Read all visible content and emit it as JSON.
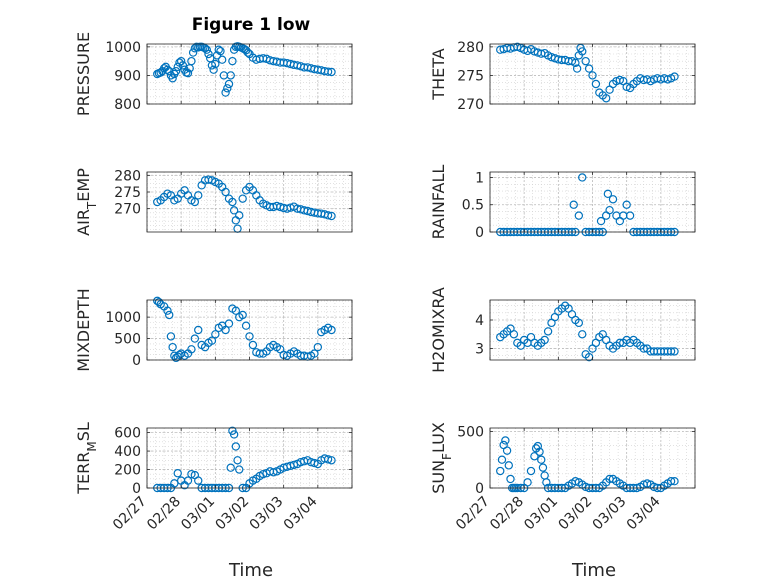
{
  "figure": {
    "title": "Figure 1 low",
    "marker_color": "#0072BD",
    "x_label": "Time",
    "x_ticks": [
      "02/27",
      "02/28",
      "03/01",
      "03/02",
      "03/03",
      "03/04"
    ]
  },
  "chart_data": [
    {
      "type": "scatter",
      "ylabel": "PRESSURE",
      "title": "Figure 1 low",
      "ylim": [
        800,
        1010
      ],
      "yticks": [
        800,
        900,
        1000
      ],
      "grid": true,
      "x": [
        0.3,
        0.35,
        0.4,
        0.45,
        0.5,
        0.55,
        0.6,
        0.65,
        0.7,
        0.75,
        0.8,
        0.85,
        0.9,
        0.95,
        1.0,
        1.05,
        1.1,
        1.15,
        1.2,
        1.25,
        1.3,
        1.35,
        1.4,
        1.45,
        1.5,
        1.55,
        1.6,
        1.65,
        1.7,
        1.75,
        1.8,
        1.85,
        1.9,
        1.95,
        2.0,
        2.05,
        2.1,
        2.15,
        2.2,
        2.25,
        2.3,
        2.35,
        2.4,
        2.45,
        2.5,
        2.55,
        2.6,
        2.65,
        2.7,
        2.75,
        2.8,
        2.85,
        2.9,
        2.95,
        3.0,
        3.1,
        3.2,
        3.3,
        3.4,
        3.5,
        3.6,
        3.7,
        3.8,
        3.9,
        4.0,
        4.1,
        4.2,
        4.3,
        4.4,
        4.5,
        4.6,
        4.7,
        4.8,
        4.9,
        5.0,
        5.1,
        5.2,
        5.3,
        5.4
      ],
      "y": [
        905,
        908,
        910,
        915,
        925,
        930,
        920,
        915,
        900,
        890,
        905,
        915,
        930,
        945,
        950,
        935,
        920,
        910,
        908,
        925,
        950,
        980,
        995,
        1000,
        998,
        1000,
        1000,
        998,
        995,
        990,
        975,
        960,
        935,
        920,
        940,
        970,
        990,
        985,
        955,
        900,
        840,
        855,
        870,
        900,
        950,
        990,
        1000,
        1002,
        1000,
        998,
        995,
        992,
        988,
        980,
        975,
        962,
        955,
        958,
        960,
        958,
        953,
        950,
        948,
        945,
        945,
        943,
        940,
        937,
        935,
        932,
        928,
        928,
        925,
        922,
        920,
        918,
        915,
        913,
        912
      ]
    },
    {
      "type": "scatter",
      "ylabel": "THETA",
      "ylim": [
        270,
        280.5
      ],
      "yticks": [
        270,
        275,
        280
      ],
      "grid": true,
      "x": [
        0.3,
        0.4,
        0.5,
        0.6,
        0.7,
        0.8,
        0.9,
        1.0,
        1.1,
        1.2,
        1.3,
        1.4,
        1.5,
        1.6,
        1.7,
        1.8,
        1.9,
        2.0,
        2.1,
        2.2,
        2.3,
        2.4,
        2.5,
        2.55,
        2.6,
        2.65,
        2.7,
        2.8,
        2.9,
        3.0,
        3.1,
        3.2,
        3.3,
        3.4,
        3.5,
        3.6,
        3.7,
        3.8,
        3.9,
        4.0,
        4.1,
        4.2,
        4.3,
        4.4,
        4.5,
        4.6,
        4.7,
        4.8,
        4.9,
        5.0,
        5.1,
        5.2,
        5.3,
        5.4
      ],
      "y": [
        279.5,
        279.6,
        279.8,
        279.7,
        279.9,
        280.0,
        279.8,
        279.5,
        279.3,
        279.6,
        279.2,
        279.0,
        278.8,
        278.9,
        278.5,
        278.2,
        278.0,
        277.8,
        277.7,
        277.7,
        277.5,
        277.5,
        277.2,
        276.2,
        278.5,
        279.8,
        279.2,
        277.5,
        276.2,
        275.0,
        273.5,
        272.0,
        271.5,
        271.0,
        272.5,
        273.5,
        274.0,
        274.2,
        274.0,
        273.0,
        272.8,
        273.5,
        274.0,
        274.5,
        274.2,
        274.3,
        274.0,
        274.3,
        274.5,
        274.3,
        274.5,
        274.3,
        274.5,
        274.8
      ]
    },
    {
      "type": "scatter",
      "ylabel": "AIR_TEMP",
      "ylim": [
        263,
        281
      ],
      "yticks": [
        270,
        275,
        280
      ],
      "grid": true,
      "x": [
        0.3,
        0.4,
        0.5,
        0.6,
        0.7,
        0.8,
        0.9,
        1.0,
        1.1,
        1.2,
        1.3,
        1.4,
        1.5,
        1.6,
        1.7,
        1.8,
        1.9,
        2.0,
        2.1,
        2.2,
        2.3,
        2.4,
        2.5,
        2.55,
        2.6,
        2.65,
        2.7,
        2.8,
        2.9,
        3.0,
        3.1,
        3.2,
        3.3,
        3.4,
        3.5,
        3.6,
        3.7,
        3.8,
        3.9,
        4.0,
        4.1,
        4.2,
        4.3,
        4.4,
        4.5,
        4.6,
        4.7,
        4.8,
        4.9,
        5.0,
        5.1,
        5.2,
        5.3,
        5.4
      ],
      "y": [
        272.0,
        272.5,
        273.5,
        274.5,
        274.0,
        272.5,
        273.0,
        274.5,
        275.5,
        274.0,
        272.5,
        272.0,
        274.0,
        277.0,
        278.5,
        278.7,
        278.5,
        278.0,
        277.5,
        276.5,
        275.0,
        273.0,
        272.0,
        269.5,
        266.5,
        264.0,
        268.0,
        273.0,
        275.5,
        276.5,
        275.5,
        274.0,
        272.5,
        271.5,
        271.0,
        270.5,
        270.5,
        270.8,
        270.5,
        270.2,
        270.0,
        270.3,
        270.6,
        270.0,
        269.8,
        269.5,
        269.3,
        269.0,
        268.8,
        268.6,
        268.5,
        268.3,
        268.0,
        267.8
      ]
    },
    {
      "type": "scatter",
      "ylabel": "RAINFALL",
      "ylim": [
        0,
        1.1
      ],
      "yticks": [
        0,
        0.5,
        1
      ],
      "grid": true,
      "x": [
        0.3,
        0.4,
        0.5,
        0.6,
        0.7,
        0.8,
        0.9,
        1.0,
        1.1,
        1.2,
        1.3,
        1.4,
        1.5,
        1.6,
        1.7,
        1.8,
        1.9,
        2.0,
        2.1,
        2.2,
        2.3,
        2.4,
        2.45,
        2.5,
        2.6,
        2.7,
        2.8,
        2.9,
        3.0,
        3.1,
        3.2,
        3.25,
        3.3,
        3.4,
        3.45,
        3.5,
        3.6,
        3.7,
        3.8,
        3.9,
        4.0,
        4.1,
        4.2,
        4.3,
        4.4,
        4.5,
        4.6,
        4.7,
        4.8,
        4.9,
        5.0,
        5.1,
        5.2,
        5.3,
        5.4
      ],
      "y": [
        0,
        0,
        0,
        0,
        0,
        0,
        0,
        0,
        0,
        0,
        0,
        0,
        0,
        0,
        0,
        0,
        0,
        0,
        0,
        0,
        0,
        0,
        0.5,
        0,
        0.3,
        1.0,
        0,
        0,
        0,
        0,
        0,
        0.2,
        0,
        0.3,
        0.7,
        0.4,
        0.6,
        0.3,
        0.2,
        0.3,
        0.5,
        0.3,
        0,
        0,
        0,
        0,
        0,
        0,
        0,
        0,
        0,
        0,
        0,
        0,
        0
      ]
    },
    {
      "type": "scatter",
      "ylabel": "MIXDEPTH",
      "ylim": [
        0,
        1400
      ],
      "yticks": [
        0,
        500,
        1000
      ],
      "grid": true,
      "x": [
        0.3,
        0.35,
        0.4,
        0.5,
        0.6,
        0.65,
        0.7,
        0.75,
        0.8,
        0.85,
        0.9,
        0.95,
        1.0,
        1.1,
        1.2,
        1.3,
        1.4,
        1.5,
        1.6,
        1.7,
        1.8,
        1.9,
        2.0,
        2.1,
        2.2,
        2.3,
        2.4,
        2.5,
        2.6,
        2.7,
        2.8,
        2.9,
        3.0,
        3.1,
        3.2,
        3.3,
        3.4,
        3.5,
        3.6,
        3.7,
        3.8,
        3.9,
        4.0,
        4.1,
        4.2,
        4.3,
        4.4,
        4.5,
        4.6,
        4.7,
        4.8,
        4.9,
        5.0,
        5.1,
        5.2,
        5.3,
        5.4
      ],
      "y": [
        1380,
        1350,
        1300,
        1250,
        1150,
        1050,
        550,
        300,
        100,
        50,
        80,
        120,
        150,
        100,
        150,
        250,
        500,
        700,
        350,
        300,
        400,
        450,
        600,
        750,
        800,
        700,
        850,
        1200,
        1150,
        1000,
        1050,
        800,
        550,
        350,
        180,
        150,
        150,
        200,
        300,
        350,
        300,
        250,
        120,
        100,
        150,
        200,
        150,
        100,
        100,
        80,
        100,
        150,
        300,
        650,
        700,
        750,
        700
      ]
    },
    {
      "type": "scatter",
      "ylabel": "H2OMIXRA",
      "ylim": [
        2.6,
        4.7
      ],
      "yticks": [
        3,
        4
      ],
      "grid": true,
      "x": [
        0.3,
        0.4,
        0.5,
        0.6,
        0.7,
        0.8,
        0.9,
        1.0,
        1.1,
        1.2,
        1.3,
        1.4,
        1.5,
        1.6,
        1.7,
        1.8,
        1.9,
        2.0,
        2.1,
        2.2,
        2.3,
        2.4,
        2.5,
        2.6,
        2.7,
        2.8,
        2.9,
        3.0,
        3.1,
        3.2,
        3.3,
        3.4,
        3.5,
        3.6,
        3.7,
        3.8,
        3.9,
        4.0,
        4.1,
        4.2,
        4.3,
        4.4,
        4.5,
        4.6,
        4.7,
        4.8,
        4.9,
        5.0,
        5.1,
        5.2,
        5.3,
        5.4
      ],
      "y": [
        3.4,
        3.5,
        3.6,
        3.7,
        3.5,
        3.2,
        3.1,
        3.3,
        3.2,
        3.4,
        3.2,
        3.1,
        3.2,
        3.3,
        3.6,
        3.9,
        4.1,
        4.3,
        4.4,
        4.5,
        4.4,
        4.2,
        4.0,
        3.9,
        3.5,
        2.8,
        2.7,
        3.0,
        3.2,
        3.4,
        3.5,
        3.3,
        3.1,
        3.0,
        3.1,
        3.2,
        3.2,
        3.3,
        3.2,
        3.3,
        3.2,
        3.1,
        3.0,
        3.0,
        2.9,
        2.9,
        2.9,
        2.9,
        2.9,
        2.9,
        2.9,
        2.9
      ]
    },
    {
      "type": "scatter",
      "ylabel": "TERR_MSL",
      "ylim": [
        0,
        650
      ],
      "yticks": [
        0,
        200,
        400,
        600
      ],
      "grid": true,
      "x": [
        0.3,
        0.4,
        0.5,
        0.6,
        0.7,
        0.8,
        0.9,
        1.0,
        1.1,
        1.2,
        1.3,
        1.4,
        1.5,
        1.6,
        1.7,
        1.8,
        1.9,
        2.0,
        2.1,
        2.2,
        2.3,
        2.4,
        2.45,
        2.5,
        2.55,
        2.6,
        2.65,
        2.7,
        2.8,
        2.9,
        3.0,
        3.1,
        3.2,
        3.3,
        3.4,
        3.5,
        3.6,
        3.7,
        3.8,
        3.9,
        4.0,
        4.1,
        4.2,
        4.3,
        4.4,
        4.5,
        4.6,
        4.7,
        4.8,
        4.9,
        5.0,
        5.1,
        5.2,
        5.3,
        5.4
      ],
      "y": [
        0,
        0,
        0,
        0,
        0,
        50,
        160,
        80,
        30,
        80,
        150,
        140,
        80,
        0,
        0,
        0,
        0,
        0,
        0,
        0,
        0,
        0,
        220,
        620,
        580,
        450,
        300,
        200,
        0,
        0,
        50,
        80,
        100,
        130,
        150,
        160,
        180,
        170,
        180,
        200,
        220,
        230,
        240,
        250,
        260,
        280,
        290,
        300,
        280,
        270,
        260,
        300,
        320,
        310,
        300
      ]
    },
    {
      "type": "scatter",
      "ylabel": "SUN_FLUX",
      "ylim": [
        0,
        530
      ],
      "yticks": [
        0,
        500
      ],
      "grid": true,
      "x": [
        0.3,
        0.35,
        0.4,
        0.45,
        0.5,
        0.55,
        0.6,
        0.65,
        0.7,
        0.75,
        0.8,
        0.9,
        1.0,
        1.1,
        1.2,
        1.3,
        1.35,
        1.4,
        1.45,
        1.5,
        1.55,
        1.6,
        1.65,
        1.7,
        1.8,
        1.9,
        2.0,
        2.1,
        2.2,
        2.3,
        2.4,
        2.5,
        2.6,
        2.7,
        2.8,
        2.9,
        3.0,
        3.1,
        3.2,
        3.3,
        3.4,
        3.5,
        3.6,
        3.7,
        3.8,
        3.9,
        4.0,
        4.1,
        4.2,
        4.3,
        4.4,
        4.5,
        4.6,
        4.7,
        4.8,
        4.9,
        5.0,
        5.1,
        5.2,
        5.3,
        5.4
      ],
      "y": [
        150,
        250,
        380,
        420,
        330,
        200,
        80,
        0,
        0,
        0,
        0,
        0,
        0,
        50,
        150,
        280,
        350,
        370,
        320,
        250,
        180,
        110,
        50,
        0,
        0,
        0,
        0,
        0,
        0,
        20,
        40,
        60,
        50,
        30,
        10,
        0,
        0,
        0,
        0,
        20,
        50,
        80,
        80,
        60,
        40,
        20,
        0,
        0,
        0,
        0,
        10,
        30,
        40,
        30,
        10,
        0,
        0,
        20,
        40,
        60,
        60
      ]
    }
  ]
}
